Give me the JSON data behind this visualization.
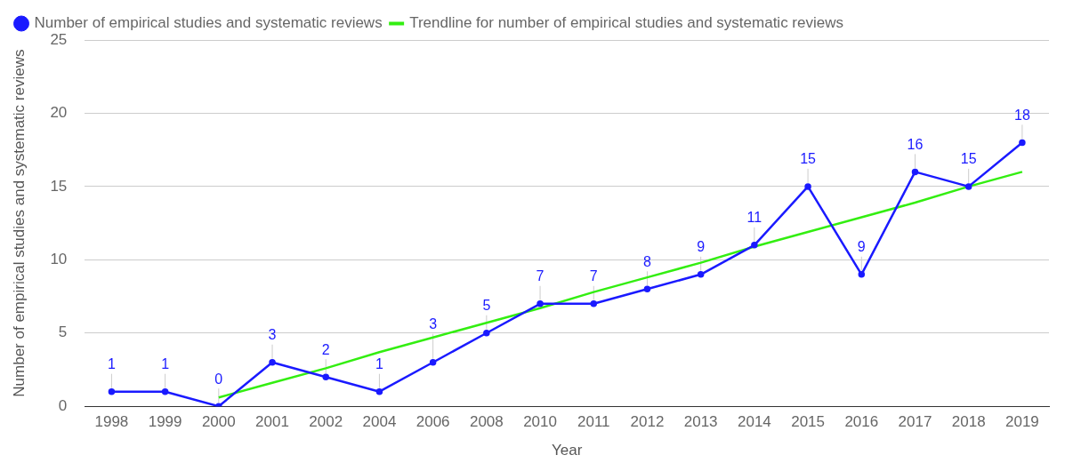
{
  "chart_data": {
    "type": "line",
    "xlabel": "Year",
    "ylabel": "Number of empirical studies and systematic reviews",
    "categories": [
      "1998",
      "1999",
      "2000",
      "2001",
      "2002",
      "2004",
      "2006",
      "2008",
      "2010",
      "2011",
      "2012",
      "2013",
      "2014",
      "2015",
      "2016",
      "2017",
      "2018",
      "2019"
    ],
    "series": [
      {
        "name": "Number of empirical studies and systematic reviews",
        "color": "#1a1aff",
        "marker": "circle",
        "values": [
          1,
          1,
          0,
          3,
          2,
          1,
          3,
          5,
          7,
          7,
          8,
          9,
          11,
          15,
          9,
          16,
          15,
          18
        ],
        "value_labels": [
          "1",
          "1",
          "0",
          "3",
          "2",
          "1",
          "3",
          "5",
          "7",
          "7",
          "8",
          "9",
          "11",
          "15",
          "9",
          "16",
          "15",
          "18"
        ]
      },
      {
        "name": "Trendline for number of empirical studies and systematic reviews",
        "color": "#33ee11",
        "marker": "none",
        "values": [
          null,
          null,
          0.6,
          1.6,
          2.6,
          3.7,
          4.7,
          5.7,
          6.7,
          7.8,
          8.8,
          9.8,
          10.9,
          11.9,
          12.9,
          13.9,
          15.0,
          16.0
        ]
      }
    ],
    "ylim": [
      0,
      25
    ],
    "yticks": [
      0,
      5,
      10,
      15,
      20,
      25
    ],
    "grid": "y",
    "legend": "top",
    "line_style": "solid"
  }
}
